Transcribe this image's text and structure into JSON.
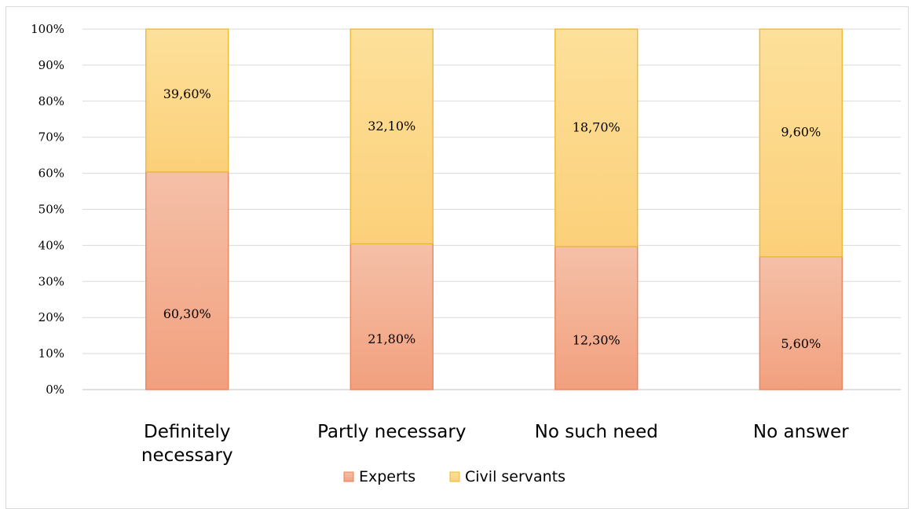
{
  "chart_data": {
    "type": "bar",
    "stacked": true,
    "normalized": true,
    "categories": [
      "Definitely necessary",
      "Partly necessary",
      "No such need",
      "No answer"
    ],
    "series": [
      {
        "name": "Experts",
        "values": [
          60.3,
          21.8,
          12.3,
          5.6
        ],
        "labels": [
          "60,30%",
          "21,80%",
          "12,30%",
          "5,60%"
        ],
        "color": "#f4a582"
      },
      {
        "name": "Civil servants",
        "values": [
          39.6,
          32.1,
          18.7,
          9.6
        ],
        "labels": [
          "39,60%",
          "32,10%",
          "18,70%",
          "9,60%"
        ],
        "color": "#fcd88a"
      }
    ],
    "y_ticks": [
      "0%",
      "10%",
      "20%",
      "30%",
      "40%",
      "50%",
      "60%",
      "70%",
      "80%",
      "90%",
      "100%"
    ],
    "ylim": [
      0,
      100
    ],
    "grid": true,
    "legend_position": "bottom"
  }
}
